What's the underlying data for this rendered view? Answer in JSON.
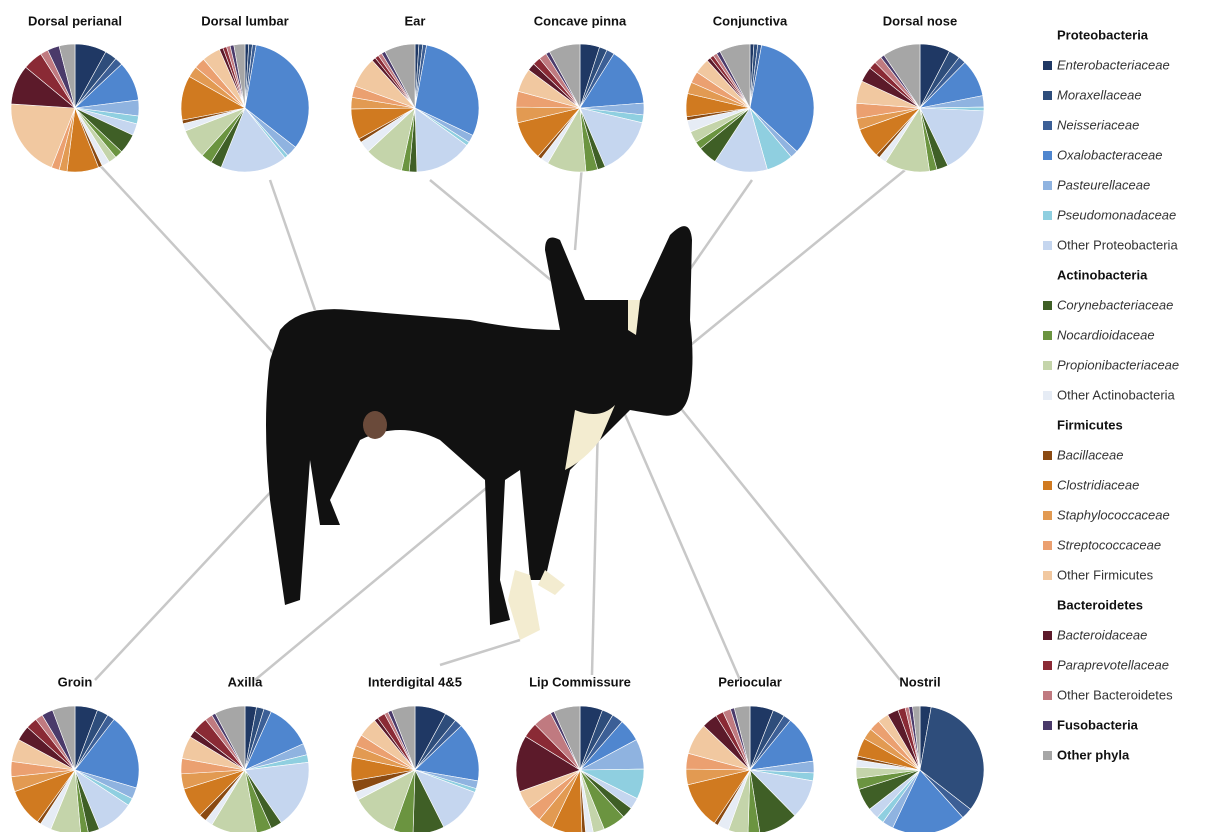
{
  "chart_data": [
    {
      "type": "pie",
      "title": "Dorsal perianal",
      "values": [
        8,
        3,
        2,
        10,
        4,
        2,
        3,
        5,
        2,
        2,
        2,
        1,
        8,
        2,
        2,
        20,
        10,
        5,
        2,
        3,
        4
      ]
    },
    {
      "type": "pie",
      "title": "Dorsal lumbar",
      "values": [
        1,
        1,
        1,
        35,
        3,
        1,
        18,
        3,
        3,
        8,
        2,
        1,
        12,
        3,
        3,
        5,
        1,
        1,
        1,
        1,
        3
      ]
    },
    {
      "type": "pie",
      "title": "Ear",
      "values": [
        1,
        1,
        1,
        30,
        2,
        1,
        15,
        2,
        2,
        10,
        3,
        1,
        8,
        3,
        3,
        8,
        1,
        1,
        1,
        1,
        8
      ]
    },
    {
      "type": "pie",
      "title": "Concave pinna",
      "values": [
        5,
        2,
        2,
        15,
        3,
        2,
        15,
        2,
        3,
        10,
        2,
        1,
        10,
        4,
        4,
        6,
        2,
        2,
        2,
        1,
        8
      ]
    },
    {
      "type": "pie",
      "title": "Conjunctiva",
      "values": [
        1,
        1,
        1,
        35,
        2,
        7,
        14,
        5,
        2,
        3,
        3,
        1,
        6,
        3,
        3,
        4,
        1,
        1,
        1,
        1,
        8
      ]
    },
    {
      "type": "pie",
      "title": "Dorsal nose",
      "values": [
        8,
        3,
        2,
        10,
        3,
        1,
        18,
        3,
        2,
        12,
        2,
        1,
        8,
        3,
        4,
        6,
        4,
        2,
        2,
        1,
        10
      ]
    },
    {
      "type": "pie",
      "title": "Groin",
      "values": [
        6,
        3,
        2,
        20,
        3,
        2,
        10,
        3,
        2,
        8,
        3,
        1,
        10,
        4,
        4,
        6,
        4,
        3,
        2,
        3,
        6
      ]
    },
    {
      "type": "pie",
      "title": "Axilla",
      "values": [
        3,
        2,
        2,
        12,
        3,
        2,
        18,
        3,
        4,
        12,
        2,
        2,
        8,
        4,
        4,
        6,
        2,
        4,
        2,
        1,
        8
      ]
    },
    {
      "type": "pie",
      "title": "Interdigital 4&5",
      "values": [
        8,
        3,
        2,
        15,
        2,
        1,
        12,
        8,
        5,
        12,
        2,
        3,
        6,
        3,
        3,
        5,
        1,
        2,
        1,
        1,
        6
      ]
    },
    {
      "type": "pie",
      "title": "Lip Commissure",
      "values": [
        6,
        3,
        3,
        6,
        8,
        8,
        3,
        3,
        6,
        3,
        2,
        1,
        8,
        4,
        4,
        5,
        15,
        4,
        5,
        1,
        7
      ]
    },
    {
      "type": "pie",
      "title": "Periocular",
      "values": [
        6,
        3,
        2,
        12,
        3,
        2,
        10,
        10,
        3,
        5,
        3,
        1,
        12,
        4,
        4,
        8,
        4,
        2,
        2,
        1,
        4
      ]
    },
    {
      "type": "pie",
      "title": "Nostril",
      "values": [
        3,
        35,
        3,
        20,
        3,
        2,
        3,
        6,
        3,
        3,
        2,
        1,
        5,
        3,
        3,
        3,
        3,
        2,
        1,
        1,
        2
      ]
    }
  ],
  "legend": [
    {
      "heading": "Proteobacteria",
      "items": [
        {
          "name": "Enterobacteriaceae",
          "color": "#1f3864",
          "italic": true
        },
        {
          "name": "Moraxellaceae",
          "color": "#2e4d7b",
          "italic": true
        },
        {
          "name": "Neisseriaceae",
          "color": "#3c5f96",
          "italic": true
        },
        {
          "name": "Oxalobacteraceae",
          "color": "#4f86cf",
          "italic": true
        },
        {
          "name": "Pasteurellaceae",
          "color": "#8fb3e0",
          "italic": true
        },
        {
          "name": "Pseudomonadaceae",
          "color": "#8fcfe0",
          "italic": true
        },
        {
          "name": "Other Proteobacteria",
          "color": "#c5d6ef"
        }
      ]
    },
    {
      "heading": "Actinobacteria",
      "items": [
        {
          "name": "Corynebacteriaceae",
          "color": "#3f5f26",
          "italic": true
        },
        {
          "name": "Nocardioidaceae",
          "color": "#6b9440",
          "italic": true
        },
        {
          "name": "Propionibacteriaceae",
          "color": "#c4d4aa",
          "italic": true
        },
        {
          "name": "Other Actinobacteria",
          "color": "#e6ecf5"
        }
      ]
    },
    {
      "heading": "Firmicutes",
      "items": [
        {
          "name": "Bacillaceae",
          "color": "#8a4a12",
          "italic": true
        },
        {
          "name": "Clostridiaceae",
          "color": "#d07a20",
          "italic": true
        },
        {
          "name": "Staphylococcaceae",
          "color": "#e29a52",
          "italic": true
        },
        {
          "name": "Streptococcaceae",
          "color": "#eba070",
          "italic": true
        },
        {
          "name": "Other Firmicutes",
          "color": "#f1c8a0"
        }
      ]
    },
    {
      "heading": "Bacteroidetes",
      "items": [
        {
          "name": "Bacteroidaceae",
          "color": "#5c1a2a",
          "italic": true
        },
        {
          "name": "Paraprevotellaceae",
          "color": "#8a2a35",
          "italic": true
        },
        {
          "name": "Other Bacteroidetes",
          "color": "#c07a80"
        }
      ]
    },
    {
      "items": [
        {
          "name": "Fusobacteria",
          "color": "#4a3a6a",
          "bold": true
        },
        {
          "name": "Other phyla",
          "color": "#a6a6a6",
          "bold": true
        }
      ]
    }
  ]
}
